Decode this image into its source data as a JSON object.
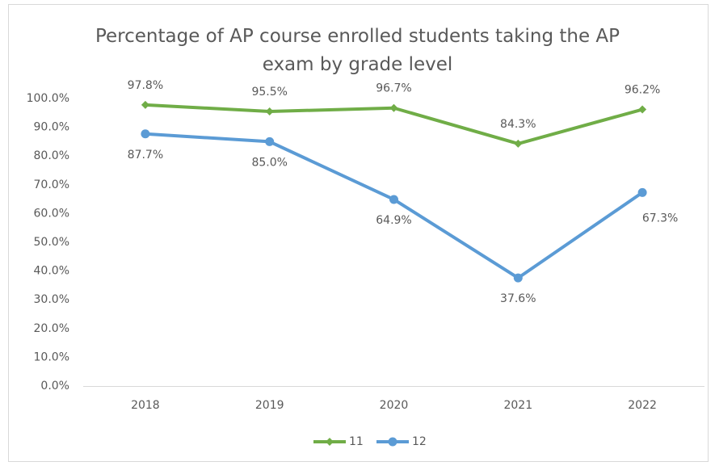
{
  "chart_data": {
    "type": "line",
    "title": "Percentage of AP course enrolled students taking the AP exam by grade level",
    "categories": [
      "2018",
      "2019",
      "2020",
      "2021",
      "2022"
    ],
    "series": [
      {
        "name": "11",
        "color": "#70ad47",
        "marker": "diamond",
        "values": [
          97.8,
          95.5,
          96.7,
          84.3,
          96.2
        ],
        "value_labels": [
          "97.8%",
          "95.5%",
          "96.7%",
          "84.3%",
          "96.2%"
        ]
      },
      {
        "name": "12",
        "color": "#5b9bd5",
        "marker": "circle",
        "values": [
          87.7,
          85.0,
          64.9,
          37.6,
          67.3
        ],
        "value_labels": [
          "87.7%",
          "85.0%",
          "64.9%",
          "37.6%",
          "67.3%"
        ]
      }
    ],
    "ylim": [
      0,
      100
    ],
    "yticks": [
      {
        "value": 0,
        "label": "0.0%"
      },
      {
        "value": 10,
        "label": "10.0%"
      },
      {
        "value": 20,
        "label": "20.0%"
      },
      {
        "value": 30,
        "label": "30.0%"
      },
      {
        "value": 40,
        "label": "40.0%"
      },
      {
        "value": 50,
        "label": "50.0%"
      },
      {
        "value": 60,
        "label": "60.0%"
      },
      {
        "value": 70,
        "label": "70.0%"
      },
      {
        "value": 80,
        "label": "80.0%"
      },
      {
        "value": 90,
        "label": "90.0%"
      },
      {
        "value": 100,
        "label": "100.0%"
      }
    ],
    "grid": false,
    "legend": "bottom"
  }
}
